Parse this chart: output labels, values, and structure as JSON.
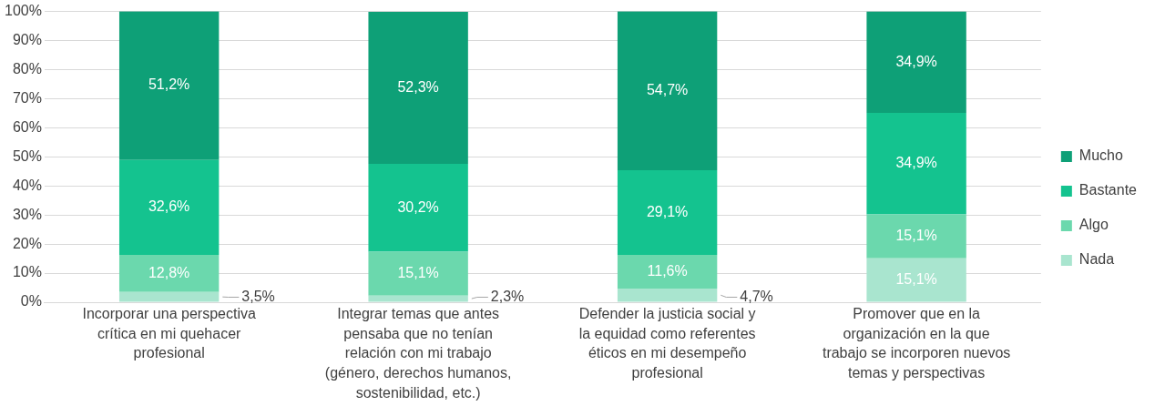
{
  "chart_data": {
    "type": "bar",
    "stacked": true,
    "categories": [
      "Incorporar una perspectiva crítica en mi quehacer profesional",
      "Integrar temas que antes pensaba que no tenían relación con mi trabajo (género, derechos humanos, sostenibilidad, etc.)",
      "Defender la justicia social y la equidad como referentes éticos en mi desempeño profesional",
      "Promover que en la organización en la que trabajo se incorporen nuevos temas y perspectivas"
    ],
    "series": [
      {
        "name": "Nada",
        "color": "#a9e5cf",
        "values": [
          3.5,
          2.3,
          4.7,
          15.1
        ],
        "value_labels": [
          "3,5%",
          "2,3%",
          "4,7%",
          "15,1%"
        ]
      },
      {
        "name": "Algo",
        "color": "#6bd8ad",
        "values": [
          12.8,
          15.1,
          11.6,
          15.1
        ],
        "value_labels": [
          "12,8%",
          "15,1%",
          "11,6%",
          "15,1%"
        ]
      },
      {
        "name": "Bastante",
        "color": "#14c38f",
        "values": [
          32.6,
          30.2,
          29.1,
          34.9
        ],
        "value_labels": [
          "32,6%",
          "30,2%",
          "29,1%",
          "34,9%"
        ]
      },
      {
        "name": "Mucho",
        "color": "#0ea077",
        "values": [
          51.2,
          52.3,
          54.7,
          34.9
        ],
        "value_labels": [
          "51,2%",
          "52,3%",
          "54,7%",
          "34,9%"
        ]
      }
    ],
    "ylim": [
      0,
      100
    ],
    "yticks": [
      {
        "value": 0,
        "label": "0%"
      },
      {
        "value": 10,
        "label": "10%"
      },
      {
        "value": 20,
        "label": "20%"
      },
      {
        "value": 30,
        "label": "30%"
      },
      {
        "value": 40,
        "label": "40%"
      },
      {
        "value": 50,
        "label": "50%"
      },
      {
        "value": 60,
        "label": "60%"
      },
      {
        "value": 70,
        "label": "70%"
      },
      {
        "value": 80,
        "label": "80%"
      },
      {
        "value": 90,
        "label": "90%"
      },
      {
        "value": 100,
        "label": "100%"
      }
    ],
    "grid": "y",
    "legend": "right"
  }
}
